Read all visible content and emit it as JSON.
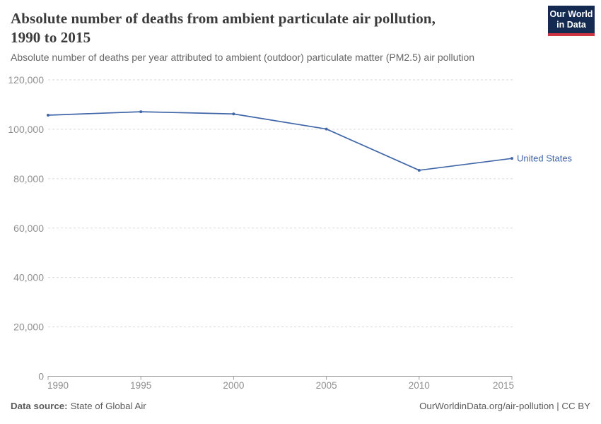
{
  "header": {
    "title_line1": "Absolute number of deaths from ambient particulate air pollution,",
    "title_line2": "1990 to 2015",
    "subtitle": "Absolute number of deaths per year attributed to ambient (outdoor) particulate matter (PM2.5) air pollution",
    "logo": {
      "line1": "Our World",
      "line2": "in Data",
      "bg_color": "#142a50",
      "accent_color": "#d0353f"
    }
  },
  "chart_data": {
    "type": "line",
    "title": "Absolute number of deaths from ambient particulate air pollution, 1990 to 2015",
    "subtitle": "Absolute number of deaths per year attributed to ambient (outdoor) particulate matter (PM2.5) air pollution",
    "x": [
      1990,
      1995,
      2000,
      2005,
      2010,
      2015
    ],
    "series": [
      {
        "name": "United States",
        "values": [
          105700,
          107100,
          106200,
          100100,
          83400,
          88200
        ],
        "color": "#4167a8"
      }
    ],
    "xlabel": "",
    "ylabel": "",
    "xlim": [
      1990,
      2015
    ],
    "ylim": [
      0,
      120000
    ],
    "x_tick_labels": [
      "1990",
      "1995",
      "2000",
      "2005",
      "2010",
      "2015"
    ],
    "y_ticks": [
      {
        "value": 0,
        "label": "0"
      },
      {
        "value": 20000,
        "label": "20,000"
      },
      {
        "value": 40000,
        "label": "40,000"
      },
      {
        "value": 60000,
        "label": "60,000"
      },
      {
        "value": 80000,
        "label": "80,000"
      },
      {
        "value": 100000,
        "label": "100,000"
      },
      {
        "value": 120000,
        "label": "120,000"
      }
    ],
    "grid": "horizontal-dashed",
    "legend_position": "line-end-label",
    "colors": {
      "grid": "#d9d9d9",
      "axis": "#a0a0a0",
      "tick_label": "#8f8f8f",
      "series_label": "#4167a8"
    }
  },
  "footer": {
    "source_label": "Data source:",
    "source_value": "State of Global Air",
    "link_text": "OurWorldinData.org/air-pollution | CC BY"
  }
}
